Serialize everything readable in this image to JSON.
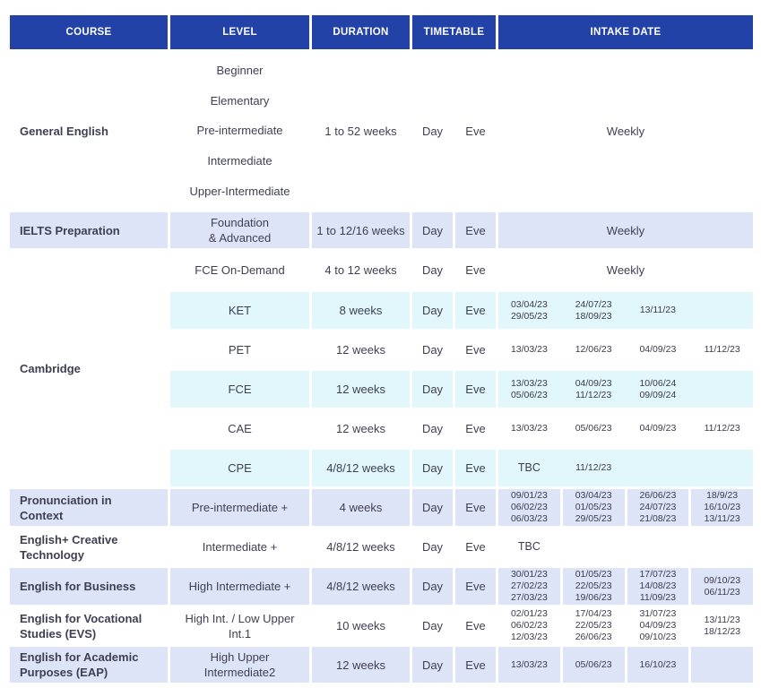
{
  "title": "English course intake timetable",
  "colors": {
    "header_bg": "#2342a8",
    "header_text": "#ffffff",
    "row_lavender": "#dde4f7",
    "row_cyan": "#e1f7fb",
    "body_text": "#3f3f52"
  },
  "header": {
    "columns": [
      "COURSE",
      "LEVEL",
      "DURATION",
      "TIMETABLE",
      "INTAKE DATE"
    ]
  },
  "rows": [
    {
      "course": "General English",
      "levels": [
        "Beginner",
        "Elementary",
        "Pre-intermediate",
        "Intermediate",
        "Upper-Intermediate"
      ],
      "duration": "1 to 52 weeks",
      "day": "Day",
      "eve": "Eve",
      "weekly": "Weekly"
    },
    {
      "course": "IELTS Preparation",
      "level": "Foundation\n& Advanced",
      "duration": "1 to 12/16 weeks",
      "day": "Day",
      "eve": "Eve",
      "weekly": "Weekly"
    },
    {
      "course": "Cambridge",
      "level": "FCE On-Demand",
      "duration": "4 to 12 weeks",
      "day": "Day",
      "eve": "Eve",
      "weekly": "Weekly"
    },
    {
      "level": "KET",
      "duration": "8 weeks",
      "day": "Day",
      "eve": "Eve",
      "dates": [
        "03/04/23\n29/05/23",
        "24/07/23\n18/09/23",
        "13/11/23",
        ""
      ]
    },
    {
      "level": "PET",
      "duration": "12 weeks",
      "day": "Day",
      "eve": "Eve",
      "dates": [
        "13/03/23",
        "12/06/23",
        "04/09/23",
        "11/12/23"
      ]
    },
    {
      "level": "FCE",
      "duration": "12 weeks",
      "day": "Day",
      "eve": "Eve",
      "dates": [
        "13/03/23\n05/06/23",
        "04/09/23\n11/12/23",
        "10/06/24\n09/09/24",
        ""
      ]
    },
    {
      "level": "CAE",
      "duration": "12 weeks",
      "day": "Day",
      "eve": "Eve",
      "dates": [
        "13/03/23",
        "05/06/23",
        "04/09/23",
        "11/12/23"
      ]
    },
    {
      "level": "CPE",
      "duration": "4/8/12 weeks",
      "day": "Day",
      "eve": "Eve",
      "dates": [
        "TBC",
        "11/12/23",
        "",
        ""
      ]
    },
    {
      "course": "Pronunciation in\nContext",
      "level": "Pre-intermediate +",
      "duration": "4 weeks",
      "day": "Day",
      "eve": "Eve",
      "dates": [
        "09/01/23\n06/02/23\n06/03/23",
        "03/04/23\n01/05/23\n29/05/23",
        "26/06/23\n24/07/23\n21/08/23",
        "18/9/23\n16/10/23\n13/11/23"
      ]
    },
    {
      "course": "English+ Creative\nTechnology",
      "level": "Intermediate +",
      "duration": "4/8/12 weeks",
      "day": "Day",
      "eve": "Eve",
      "dates": [
        "TBC",
        "",
        "",
        ""
      ]
    },
    {
      "course": "English for Business",
      "level": "High Intermediate +",
      "duration": "4/8/12 weeks",
      "day": "Day",
      "eve": "Eve",
      "dates": [
        "30/01/23\n27/02/23\n27/03/23",
        "01/05/23\n22/05/23\n19/06/23",
        "17/07/23\n14/08/23\n11/09/23",
        "09/10/23\n06/11/23"
      ]
    },
    {
      "course": "English for Vocational\nStudies (EVS)",
      "level": "High Int. / Low Upper\nInt.1",
      "duration": "10 weeks",
      "day": "Day",
      "eve": "Eve",
      "dates": [
        "02/01/23\n06/02/23\n12/03/23",
        "17/04/23\n22/05/23\n26/06/23",
        "31/07/23\n04/09/23\n09/10/23",
        "13/11/23\n18/12/23"
      ]
    },
    {
      "course": "English for Academic\nPurposes (EAP)",
      "level": "High Upper\nIntermediate2",
      "duration": "12 weeks",
      "day": "Day",
      "eve": "Eve",
      "dates": [
        "13/03/23",
        "05/06/23",
        "16/10/23",
        ""
      ]
    }
  ]
}
